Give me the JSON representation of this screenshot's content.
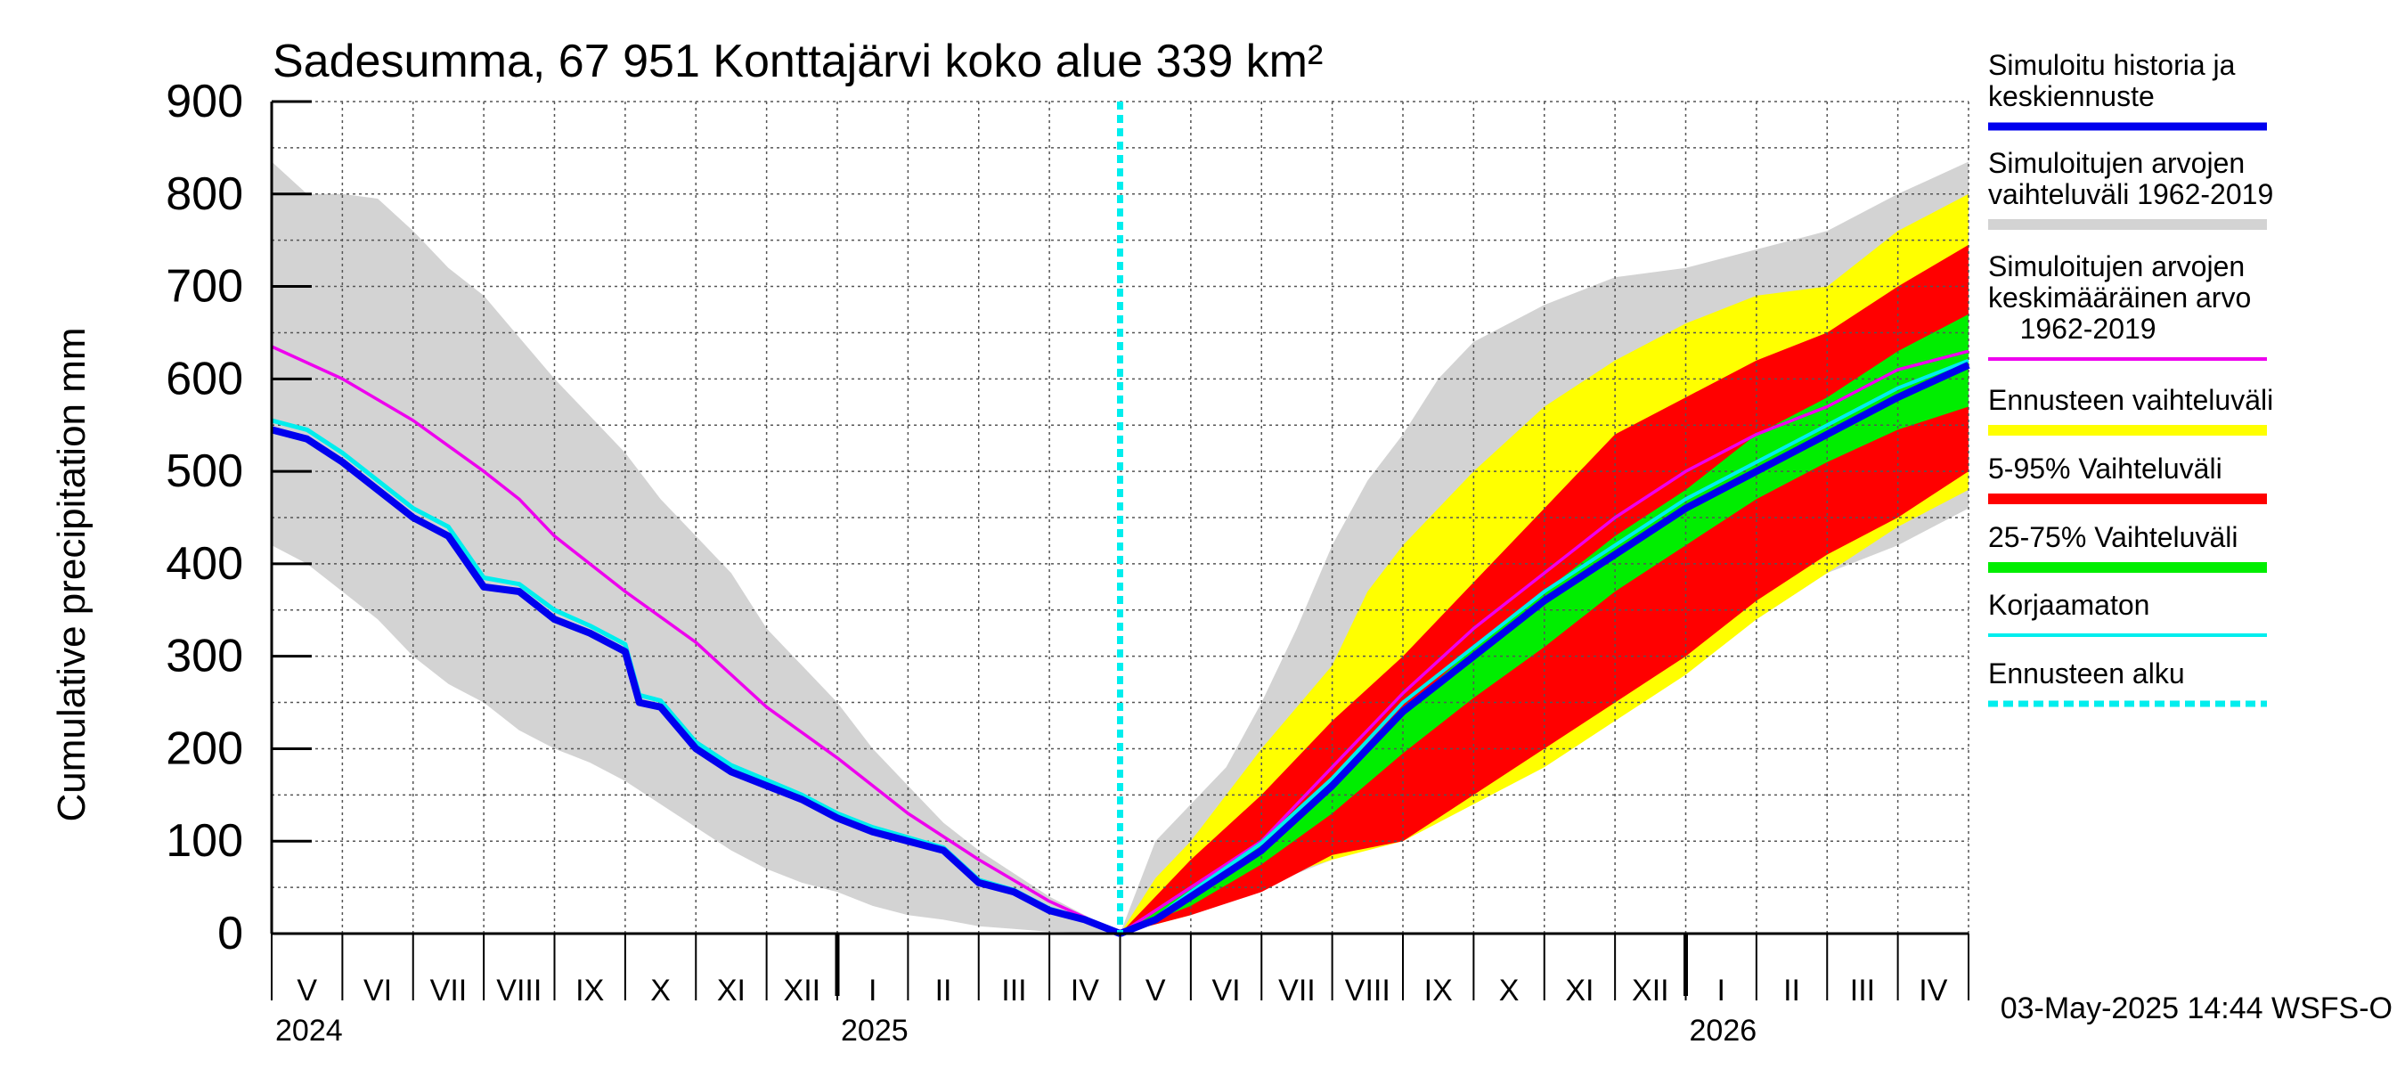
{
  "chart_data": {
    "type": "area",
    "title": "Sadesumma, 67 951 Konttajärvi koko alue 339 km²",
    "ylabel": "Cumulative precipitation   mm",
    "ylim": [
      0,
      900
    ],
    "yticks": [
      0,
      100,
      200,
      300,
      400,
      500,
      600,
      700,
      800,
      900
    ],
    "x_unit": "months since 2024-05-01",
    "xlim": [
      0,
      24
    ],
    "forecast_start": 12,
    "months": [
      "V",
      "VI",
      "VII",
      "VIII",
      "IX",
      "X",
      "XI",
      "XII",
      "I",
      "II",
      "III",
      "IV",
      "V",
      "VI",
      "VII",
      "VIII",
      "IX",
      "X",
      "XI",
      "XII",
      "I",
      "II",
      "III",
      "IV"
    ],
    "years": [
      {
        "label": "2024",
        "x": 0
      },
      {
        "label": "2025",
        "x": 8
      },
      {
        "label": "2026",
        "x": 20
      }
    ],
    "timestamp": "03-May-2025 14:44 WSFS-O",
    "colors": {
      "simulated": "#0000ee",
      "hist_range": "#d3d3d3",
      "hist_mean": "#ee00ee",
      "forecast_range": "#ffff00",
      "p5_95": "#ff0000",
      "p25_75": "#00ee00",
      "uncorrected": "#00eeee",
      "forecast_start": "#00eeee",
      "grid": "#555555"
    },
    "legend": [
      {
        "key": "simulated",
        "lines": [
          "Simuloitu historia ja",
          "keskiennuste"
        ]
      },
      {
        "key": "hist_range",
        "lines": [
          "Simuloitujen arvojen",
          "vaihteluväli 1962-2019"
        ]
      },
      {
        "key": "hist_mean",
        "lines": [
          "Simuloitujen arvojen",
          "keskimääräinen arvo",
          "    1962-2019"
        ]
      },
      {
        "key": "forecast_range",
        "lines": [
          "Ennusteen vaihteluväli"
        ]
      },
      {
        "key": "p5_95",
        "lines": [
          "5-95% Vaihteluväli"
        ]
      },
      {
        "key": "p25_75",
        "lines": [
          "25-75% Vaihteluväli"
        ]
      },
      {
        "key": "uncorrected",
        "lines": [
          "Korjaamaton"
        ]
      },
      {
        "key": "forecast_start",
        "lines": [
          "Ennusteen alku"
        ]
      }
    ],
    "series": {
      "hist_upper": [
        [
          0,
          835
        ],
        [
          0.5,
          800
        ],
        [
          1,
          800
        ],
        [
          1.5,
          795
        ],
        [
          2,
          760
        ],
        [
          2.5,
          720
        ],
        [
          3,
          690
        ],
        [
          3.5,
          645
        ],
        [
          4,
          600
        ],
        [
          4.5,
          560
        ],
        [
          5,
          520
        ],
        [
          5.5,
          470
        ],
        [
          6,
          430
        ],
        [
          6.5,
          390
        ],
        [
          7,
          330
        ],
        [
          7.5,
          290
        ],
        [
          8,
          250
        ],
        [
          8.5,
          200
        ],
        [
          9,
          160
        ],
        [
          9.5,
          120
        ],
        [
          10,
          90
        ],
        [
          10.5,
          65
        ],
        [
          11,
          40
        ],
        [
          11.5,
          20
        ],
        [
          12,
          0
        ]
      ],
      "hist_lower": [
        [
          0,
          420
        ],
        [
          0.5,
          400
        ],
        [
          1,
          370
        ],
        [
          1.5,
          340
        ],
        [
          2,
          300
        ],
        [
          2.5,
          270
        ],
        [
          3,
          250
        ],
        [
          3.5,
          220
        ],
        [
          4,
          200
        ],
        [
          4.5,
          185
        ],
        [
          5,
          165
        ],
        [
          5.5,
          140
        ],
        [
          6,
          115
        ],
        [
          6.5,
          90
        ],
        [
          7,
          70
        ],
        [
          7.5,
          55
        ],
        [
          8,
          45
        ],
        [
          8.5,
          30
        ],
        [
          9,
          20
        ],
        [
          9.5,
          15
        ],
        [
          10,
          8
        ],
        [
          10.5,
          5
        ],
        [
          11,
          2
        ],
        [
          12,
          0
        ]
      ],
      "hist_mean": [
        [
          0,
          635
        ],
        [
          1,
          600
        ],
        [
          2,
          555
        ],
        [
          3,
          500
        ],
        [
          3.5,
          470
        ],
        [
          4,
          430
        ],
        [
          5,
          370
        ],
        [
          6,
          315
        ],
        [
          7,
          245
        ],
        [
          8,
          190
        ],
        [
          9,
          130
        ],
        [
          10,
          80
        ],
        [
          11,
          35
        ],
        [
          12,
          0
        ]
      ],
      "simulated_hist": [
        [
          0,
          545
        ],
        [
          0.5,
          535
        ],
        [
          1,
          510
        ],
        [
          1.5,
          480
        ],
        [
          2,
          450
        ],
        [
          2.5,
          430
        ],
        [
          3,
          375
        ],
        [
          3.5,
          370
        ],
        [
          4,
          340
        ],
        [
          4.5,
          325
        ],
        [
          5,
          305
        ],
        [
          5.2,
          250
        ],
        [
          5.5,
          245
        ],
        [
          6,
          200
        ],
        [
          6.5,
          175
        ],
        [
          7,
          160
        ],
        [
          7.5,
          145
        ],
        [
          8,
          125
        ],
        [
          8.5,
          110
        ],
        [
          9,
          100
        ],
        [
          9.5,
          90
        ],
        [
          10,
          55
        ],
        [
          10.5,
          45
        ],
        [
          11,
          25
        ],
        [
          11.5,
          15
        ],
        [
          12,
          0
        ]
      ],
      "uncorrected": [
        [
          0,
          555
        ],
        [
          0.5,
          545
        ],
        [
          1,
          520
        ],
        [
          1.5,
          490
        ],
        [
          2,
          460
        ],
        [
          2.5,
          440
        ],
        [
          3,
          385
        ],
        [
          3.5,
          378
        ],
        [
          4,
          350
        ],
        [
          4.5,
          333
        ],
        [
          5,
          313
        ],
        [
          5.2,
          258
        ],
        [
          5.5,
          252
        ],
        [
          6,
          207
        ],
        [
          6.5,
          182
        ],
        [
          7,
          166
        ],
        [
          7.5,
          150
        ],
        [
          8,
          130
        ],
        [
          8.5,
          115
        ],
        [
          9,
          104
        ],
        [
          9.5,
          93
        ],
        [
          10,
          58
        ],
        [
          10.5,
          47
        ],
        [
          11,
          27
        ],
        [
          11.5,
          16
        ],
        [
          12,
          0
        ]
      ],
      "future_hist_upper": [
        [
          12,
          0
        ],
        [
          12.5,
          100
        ],
        [
          13,
          140
        ],
        [
          13.5,
          180
        ],
        [
          14,
          250
        ],
        [
          14.5,
          330
        ],
        [
          15,
          420
        ],
        [
          15.5,
          490
        ],
        [
          16,
          540
        ],
        [
          16.5,
          600
        ],
        [
          17,
          640
        ],
        [
          18,
          680
        ],
        [
          19,
          710
        ],
        [
          20,
          720
        ],
        [
          21,
          740
        ],
        [
          22,
          760
        ],
        [
          23,
          800
        ],
        [
          24,
          835
        ]
      ],
      "future_hist_lower": [
        [
          12,
          0
        ],
        [
          13,
          20
        ],
        [
          14,
          50
        ],
        [
          15,
          80
        ],
        [
          16,
          110
        ],
        [
          17,
          150
        ],
        [
          18,
          200
        ],
        [
          19,
          250
        ],
        [
          20,
          290
        ],
        [
          21,
          340
        ],
        [
          22,
          390
        ],
        [
          23,
          420
        ],
        [
          24,
          460
        ]
      ],
      "forecast_upper": [
        [
          12,
          0
        ],
        [
          12.5,
          60
        ],
        [
          13,
          100
        ],
        [
          14,
          200
        ],
        [
          15,
          290
        ],
        [
          15.5,
          370
        ],
        [
          16,
          420
        ],
        [
          17,
          500
        ],
        [
          18,
          570
        ],
        [
          19,
          620
        ],
        [
          20,
          660
        ],
        [
          21,
          690
        ],
        [
          22,
          700
        ],
        [
          23,
          760
        ],
        [
          24,
          800
        ]
      ],
      "forecast_lower": [
        [
          12,
          0
        ],
        [
          13,
          20
        ],
        [
          14,
          55
        ],
        [
          15,
          80
        ],
        [
          16,
          100
        ],
        [
          17,
          140
        ],
        [
          18,
          180
        ],
        [
          19,
          230
        ],
        [
          20,
          280
        ],
        [
          21,
          340
        ],
        [
          22,
          390
        ],
        [
          23,
          440
        ],
        [
          24,
          480
        ]
      ],
      "p95": [
        [
          12,
          0
        ],
        [
          12.5,
          40
        ],
        [
          13,
          80
        ],
        [
          14,
          150
        ],
        [
          15,
          230
        ],
        [
          16,
          300
        ],
        [
          17,
          380
        ],
        [
          18,
          460
        ],
        [
          19,
          540
        ],
        [
          20,
          580
        ],
        [
          21,
          620
        ],
        [
          22,
          650
        ],
        [
          23,
          700
        ],
        [
          24,
          745
        ]
      ],
      "p5": [
        [
          12,
          0
        ],
        [
          12.5,
          10
        ],
        [
          13,
          20
        ],
        [
          14,
          45
        ],
        [
          15,
          85
        ],
        [
          16,
          100
        ],
        [
          17,
          150
        ],
        [
          18,
          200
        ],
        [
          19,
          250
        ],
        [
          20,
          300
        ],
        [
          21,
          360
        ],
        [
          22,
          410
        ],
        [
          23,
          450
        ],
        [
          24,
          500
        ]
      ],
      "p75": [
        [
          12,
          0
        ],
        [
          13,
          50
        ],
        [
          14,
          100
        ],
        [
          15,
          170
        ],
        [
          16,
          240
        ],
        [
          17,
          310
        ],
        [
          18,
          370
        ],
        [
          19,
          430
        ],
        [
          20,
          480
        ],
        [
          21,
          540
        ],
        [
          22,
          580
        ],
        [
          23,
          630
        ],
        [
          24,
          670
        ]
      ],
      "p25": [
        [
          12,
          0
        ],
        [
          13,
          30
        ],
        [
          14,
          75
        ],
        [
          15,
          130
        ],
        [
          16,
          195
        ],
        [
          17,
          255
        ],
        [
          18,
          310
        ],
        [
          19,
          370
        ],
        [
          20,
          420
        ],
        [
          21,
          470
        ],
        [
          22,
          510
        ],
        [
          23,
          545
        ],
        [
          24,
          570
        ]
      ],
      "future_hist_mean": [
        [
          12,
          0
        ],
        [
          13,
          50
        ],
        [
          14,
          100
        ],
        [
          15,
          180
        ],
        [
          16,
          260
        ],
        [
          17,
          330
        ],
        [
          18,
          390
        ],
        [
          19,
          450
        ],
        [
          20,
          500
        ],
        [
          21,
          540
        ],
        [
          22,
          570
        ],
        [
          23,
          610
        ],
        [
          24,
          630
        ]
      ],
      "forecast_mean": [
        [
          12,
          0
        ],
        [
          12.5,
          15
        ],
        [
          13,
          40
        ],
        [
          14,
          90
        ],
        [
          15,
          160
        ],
        [
          15.5,
          200
        ],
        [
          16,
          240
        ],
        [
          16.5,
          270
        ],
        [
          17,
          300
        ],
        [
          18,
          360
        ],
        [
          19,
          410
        ],
        [
          20,
          460
        ],
        [
          21,
          500
        ],
        [
          22,
          540
        ],
        [
          23,
          580
        ],
        [
          24,
          615
        ]
      ],
      "future_uncorrected": [
        [
          12,
          0
        ],
        [
          12.5,
          17
        ],
        [
          13,
          45
        ],
        [
          14,
          98
        ],
        [
          15,
          168
        ],
        [
          16,
          250
        ],
        [
          17,
          310
        ],
        [
          18,
          370
        ],
        [
          19,
          420
        ],
        [
          20,
          470
        ],
        [
          21,
          510
        ],
        [
          22,
          550
        ],
        [
          23,
          590
        ],
        [
          24,
          620
        ]
      ]
    }
  }
}
